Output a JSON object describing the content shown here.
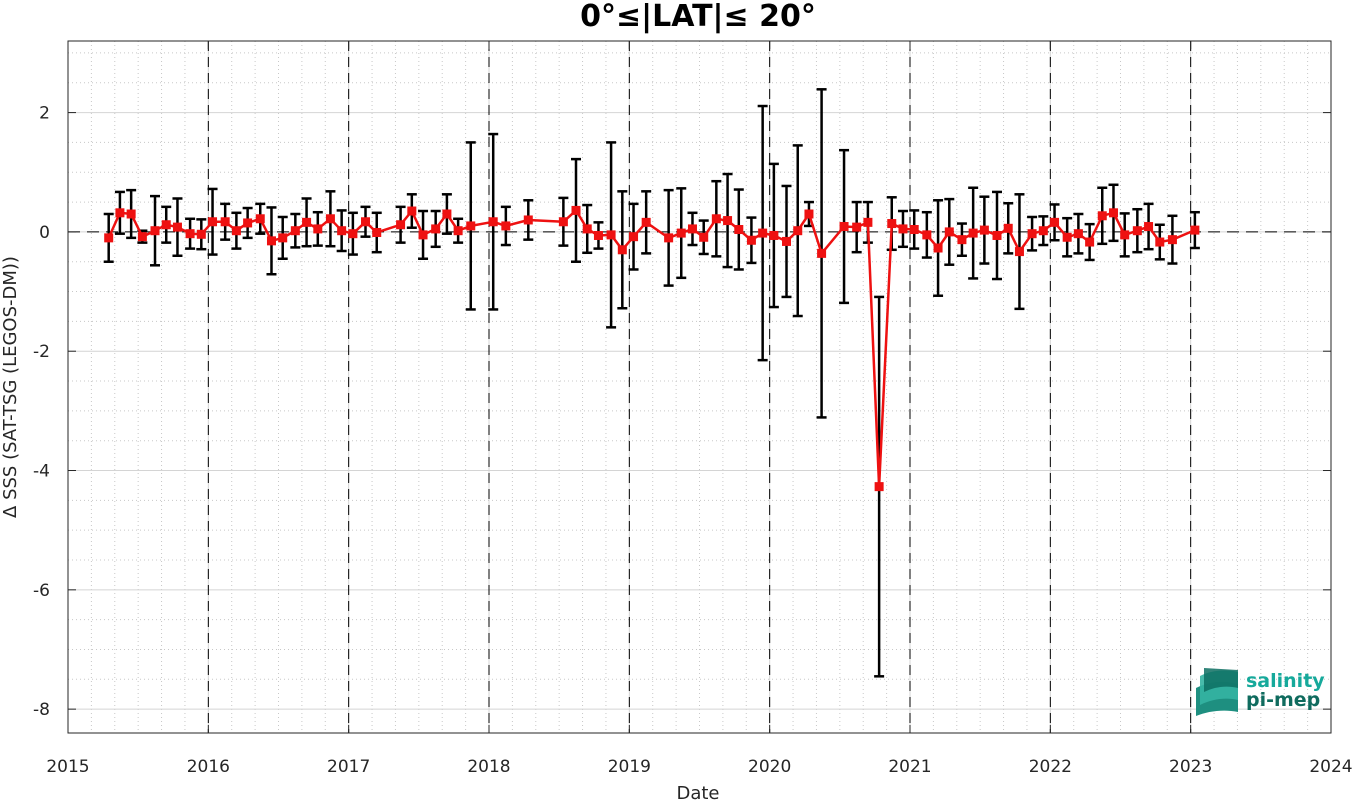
{
  "chart_data": {
    "type": "line",
    "title": "0°≤|LAT|≤ 20°",
    "xlabel": "Date",
    "ylabel": "Δ SSS (SAT-TSG (LEGOS-DM))",
    "xlim": [
      2015,
      2024
    ],
    "ylim": [
      -8.4,
      3.2
    ],
    "x_ticks": [
      2015,
      2016,
      2017,
      2018,
      2019,
      2020,
      2021,
      2022,
      2023,
      2024
    ],
    "x_tick_labels": [
      "2015",
      "2016",
      "2017",
      "2018",
      "2019",
      "2020",
      "2021",
      "2022",
      "2023",
      "2024"
    ],
    "y_ticks": [
      -8,
      -6,
      -4,
      -2,
      0,
      2
    ],
    "y_tick_labels": [
      "-8",
      "-6",
      "-4",
      "-2",
      "0",
      "2"
    ],
    "grid": "minor dotted",
    "year_markers": [
      2016,
      2017,
      2018,
      2019,
      2020,
      2021,
      2022,
      2023
    ],
    "zero_line": 0,
    "series": [
      {
        "color": "#ee1111",
        "errorbar_color": "#000000",
        "x": [
          2015.29,
          2015.37,
          2015.45,
          2015.53,
          2015.62,
          2015.7,
          2015.78,
          2015.87,
          2015.95,
          2016.03,
          2016.12,
          2016.2,
          2016.28,
          2016.37,
          2016.45,
          2016.53,
          2016.62,
          2016.7,
          2016.78,
          2016.87,
          2016.95,
          2017.03,
          2017.12,
          2017.2,
          2017.37,
          2017.45,
          2017.53,
          2017.62,
          2017.7,
          2017.78,
          2017.87,
          2018.03,
          2018.12,
          2018.28,
          2018.53,
          2018.62,
          2018.7,
          2018.78,
          2018.87,
          2018.95,
          2019.03,
          2019.12,
          2019.28,
          2019.37,
          2019.45,
          2019.53,
          2019.62,
          2019.7,
          2019.78,
          2019.87,
          2019.95,
          2020.03,
          2020.12,
          2020.2,
          2020.28,
          2020.37,
          2020.53,
          2020.62,
          2020.7,
          2020.78,
          2020.87,
          2020.95,
          2021.03,
          2021.12,
          2021.2,
          2021.28,
          2021.37,
          2021.45,
          2021.53,
          2021.62,
          2021.7,
          2021.78,
          2021.87,
          2021.95,
          2022.03,
          2022.12,
          2022.2,
          2022.28,
          2022.37,
          2022.45,
          2022.53,
          2022.62,
          2022.7,
          2022.78,
          2022.87,
          2023.03
        ],
        "values": [
          -0.1,
          0.32,
          0.3,
          -0.08,
          0.02,
          0.12,
          0.08,
          -0.03,
          -0.04,
          0.17,
          0.17,
          0.02,
          0.15,
          0.22,
          -0.15,
          -0.1,
          0.02,
          0.16,
          0.05,
          0.22,
          0.02,
          -0.03,
          0.17,
          -0.01,
          0.12,
          0.35,
          -0.05,
          0.05,
          0.3,
          0.02,
          0.1,
          0.17,
          0.1,
          0.2,
          0.17,
          0.36,
          0.05,
          -0.06,
          -0.05,
          -0.3,
          -0.08,
          0.16,
          -0.1,
          -0.02,
          0.05,
          -0.09,
          0.22,
          0.19,
          0.04,
          -0.14,
          -0.02,
          -0.06,
          -0.16,
          0.02,
          0.3,
          -0.36,
          0.09,
          0.08,
          0.16,
          -4.27,
          0.14,
          0.05,
          0.04,
          -0.05,
          -0.27,
          0.0,
          -0.13,
          -0.02,
          0.03,
          -0.06,
          0.06,
          -0.33,
          -0.03,
          0.02,
          0.16,
          -0.09,
          -0.03,
          -0.17,
          0.27,
          0.32,
          -0.05,
          0.02,
          0.09,
          -0.17,
          -0.13,
          0.03
        ],
        "errors": [
          0.4,
          0.35,
          0.4,
          0.1,
          0.58,
          0.3,
          0.48,
          0.25,
          0.25,
          0.55,
          0.3,
          0.3,
          0.25,
          0.25,
          0.56,
          0.35,
          0.28,
          0.4,
          0.28,
          0.46,
          0.34,
          0.35,
          0.25,
          0.33,
          0.3,
          0.28,
          0.4,
          0.3,
          0.33,
          0.2,
          1.4,
          1.47,
          0.32,
          0.33,
          0.4,
          0.86,
          0.4,
          0.22,
          1.55,
          0.98,
          0.55,
          0.52,
          0.8,
          0.75,
          0.27,
          0.28,
          0.63,
          0.78,
          0.67,
          0.38,
          2.13,
          1.2,
          0.93,
          1.43,
          0.2,
          2.75,
          1.28,
          0.42,
          0.34,
          3.18,
          0.44,
          0.3,
          0.32,
          0.38,
          0.8,
          0.55,
          0.27,
          0.76,
          0.56,
          0.73,
          0.42,
          0.96,
          0.28,
          0.24,
          0.3,
          0.32,
          0.33,
          0.3,
          0.47,
          0.47,
          0.36,
          0.36,
          0.38,
          0.29,
          0.4,
          0.3
        ]
      }
    ]
  },
  "logo": {
    "line1": "salinity",
    "line2": "pi-mep",
    "color1": "#16a99b",
    "color2": "#0f6b5e"
  }
}
